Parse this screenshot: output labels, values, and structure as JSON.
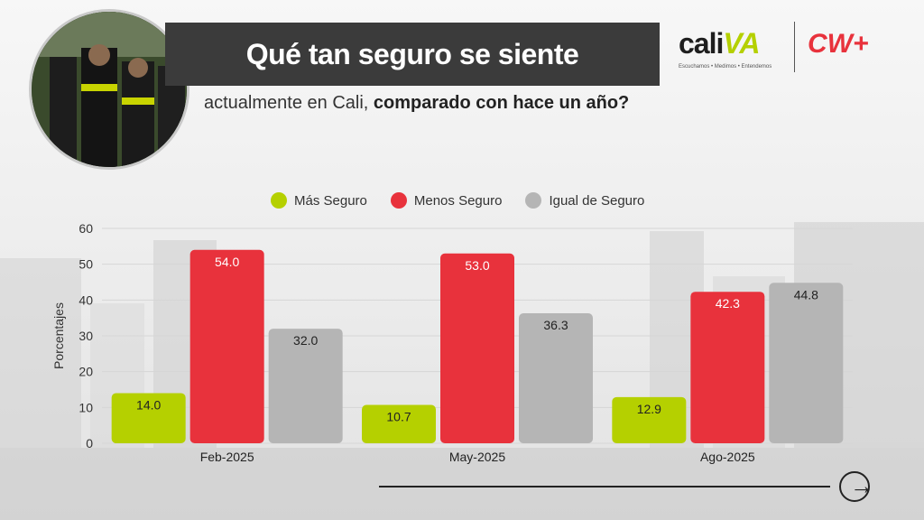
{
  "header": {
    "title": "Qué tan seguro se siente",
    "subtitle_regular": "actualmente en Cali,",
    "subtitle_bold": "comparado con hace un año?"
  },
  "logos": {
    "cali": "cali",
    "va": "VA",
    "tagline": "Escuchamos • Medimos • Entendemos",
    "cw": "CW+"
  },
  "colors": {
    "mas_seguro": "#b5d000",
    "menos_seguro": "#e8323c",
    "igual_seguro": "#b5b5b5",
    "title_bar": "#3b3b3b"
  },
  "chart_data": {
    "type": "bar",
    "categories": [
      "Feb-2025",
      "May-2025",
      "Ago-2025"
    ],
    "series": [
      {
        "name": "Más Seguro",
        "values": [
          14.0,
          10.7,
          12.9
        ]
      },
      {
        "name": "Menos Seguro",
        "values": [
          54.0,
          53.0,
          42.3
        ]
      },
      {
        "name": "Igual de Seguro",
        "values": [
          32.0,
          36.3,
          44.8
        ]
      }
    ],
    "ylabel": "Porcentajes",
    "ylim": [
      0,
      60
    ],
    "yticks": [
      0,
      10,
      20,
      30,
      40,
      50,
      60
    ],
    "grid": true,
    "legend": "top"
  }
}
